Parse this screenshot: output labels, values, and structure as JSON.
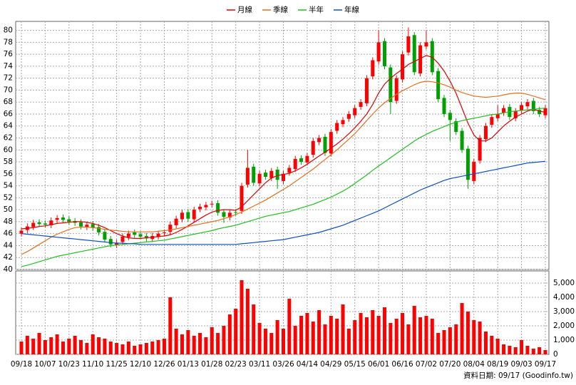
{
  "chart_data": {
    "type": "candlestick",
    "categories": [
      "09/18",
      null,
      null,
      null,
      "10/07",
      null,
      null,
      null,
      "10/23",
      null,
      null,
      null,
      "11/10",
      null,
      null,
      null,
      "11/25",
      null,
      null,
      null,
      "12/10",
      null,
      null,
      null,
      "12/26",
      null,
      null,
      null,
      "01/13",
      null,
      null,
      null,
      "01/28",
      null,
      null,
      null,
      "02/23",
      null,
      null,
      null,
      "03/11",
      null,
      null,
      null,
      "03/26",
      null,
      null,
      null,
      "04/14",
      null,
      null,
      null,
      "04/29",
      null,
      null,
      null,
      "05/15",
      null,
      null,
      null,
      "06/01",
      null,
      null,
      null,
      "06/16",
      null,
      null,
      null,
      "07/02",
      null,
      null,
      null,
      "07/20",
      null,
      null,
      null,
      "08/04",
      null,
      null,
      null,
      "08/19",
      null,
      null,
      null,
      "09/03",
      null,
      null,
      null,
      "09/17"
    ],
    "open": [
      46.0,
      46.6,
      47.1,
      47.9,
      47.7,
      47.4,
      48.3,
      48.7,
      48.4,
      48.1,
      47.9,
      47.1,
      47.6,
      47.1,
      46.3,
      45.1,
      44.1,
      44.6,
      45.4,
      46.2,
      45.9,
      45.6,
      45.1,
      45.5,
      46.1,
      46.3,
      47.4,
      48.4,
      49.6,
      48.4,
      50.1,
      50.4,
      50.9,
      51.1,
      49.6,
      48.7,
      49.6,
      49.8,
      54.2,
      57.2,
      54.4,
      56.2,
      55.3,
      56.7,
      54.8,
      56.2,
      56.8,
      58.6,
      57.9,
      59.2,
      61.3,
      62.2,
      59.4,
      63.2,
      64.3,
      65.2,
      65.8,
      67.2,
      67.8,
      72.3,
      74.8,
      78.2,
      73.8,
      68.2,
      71.8,
      76.3,
      79.2,
      72.8,
      77.3,
      78.2,
      73.2,
      68.7,
      66.2,
      64.8,
      63.2,
      60.2,
      54.8,
      58.2,
      61.8,
      64.2,
      65.3,
      66.2,
      67.2,
      65.3,
      66.6,
      67.3,
      68.2,
      66.7,
      65.8
    ],
    "high": [
      47.0,
      47.7,
      48.3,
      48.4,
      48.2,
      48.7,
      49.1,
      49.2,
      48.9,
      48.6,
      48.4,
      48.0,
      48.1,
      47.6,
      46.8,
      45.6,
      45.0,
      46.0,
      46.5,
      46.7,
      46.4,
      46.1,
      46.1,
      46.5,
      46.7,
      48.0,
      49.0,
      50.0,
      50.1,
      50.5,
      51.0,
      51.3,
      51.5,
      51.6,
      50.1,
      50.0,
      50.1,
      54.5,
      60.0,
      57.7,
      56.5,
      56.7,
      57.0,
      57.2,
      56.5,
      57.5,
      59.0,
      59.1,
      59.5,
      62.0,
      62.5,
      62.7,
      63.5,
      65.0,
      65.5,
      66.5,
      67.5,
      68.5,
      72.5,
      75.5,
      80.0,
      78.7,
      74.3,
      72.5,
      76.5,
      80.5,
      79.7,
      78.0,
      80.0,
      78.7,
      73.7,
      69.2,
      66.7,
      65.3,
      63.7,
      60.7,
      58.5,
      62.5,
      64.5,
      66.0,
      67.5,
      67.5,
      67.7,
      67.0,
      68.0,
      68.5,
      68.7,
      67.2,
      67.5
    ],
    "low": [
      45.5,
      46.1,
      46.6,
      47.1,
      47.0,
      46.9,
      47.8,
      47.8,
      47.5,
      47.3,
      46.7,
      46.6,
      46.5,
      45.7,
      44.5,
      43.7,
      43.6,
      44.1,
      44.9,
      45.3,
      45.0,
      44.7,
      44.6,
      45.0,
      45.6,
      45.8,
      46.9,
      47.9,
      48.0,
      47.9,
      49.6,
      49.9,
      50.4,
      49.0,
      47.8,
      48.2,
      49.0,
      49.3,
      53.7,
      54.0,
      53.9,
      55.0,
      54.8,
      53.5,
      54.3,
      55.7,
      56.3,
      57.5,
      57.4,
      58.7,
      60.8,
      59.0,
      58.9,
      62.7,
      63.8,
      64.7,
      65.3,
      66.7,
      67.3,
      71.8,
      74.3,
      73.5,
      66.0,
      67.7,
      71.3,
      75.8,
      72.5,
      72.3,
      76.8,
      72.5,
      68.0,
      65.5,
      61.5,
      62.5,
      59.5,
      53.5,
      54.3,
      57.7,
      61.3,
      63.7,
      64.8,
      65.7,
      65.0,
      64.8,
      66.1,
      66.8,
      66.0,
      65.5,
      65.3
    ],
    "close": [
      46.5,
      47.2,
      47.8,
      47.6,
      47.5,
      48.2,
      48.6,
      48.3,
      48.0,
      47.8,
      47.2,
      47.5,
      47.0,
      46.2,
      45.0,
      44.2,
      44.5,
      45.5,
      46.0,
      45.8,
      45.5,
      45.2,
      45.6,
      46.0,
      46.2,
      47.5,
      48.5,
      49.5,
      48.5,
      50.0,
      50.5,
      50.8,
      51.0,
      49.5,
      48.8,
      49.5,
      49.5,
      54.0,
      57.0,
      54.5,
      56.0,
      55.5,
      56.5,
      55.0,
      56.0,
      57.0,
      58.5,
      58.0,
      59.0,
      61.5,
      62.0,
      59.5,
      63.0,
      64.5,
      65.0,
      66.0,
      67.0,
      68.0,
      72.0,
      75.0,
      78.0,
      74.0,
      68.0,
      72.0,
      76.0,
      79.0,
      73.0,
      77.5,
      78.0,
      73.0,
      68.5,
      66.0,
      65.0,
      63.0,
      60.0,
      55.0,
      58.0,
      62.0,
      64.0,
      65.5,
      66.0,
      67.0,
      65.5,
      66.5,
      67.5,
      68.0,
      66.5,
      66.0,
      67.0
    ],
    "up_color": "#ff0000",
    "down_color": "#00a000",
    "ylim": [
      40,
      81.5
    ],
    "yticks": [
      40,
      42,
      44,
      46,
      48,
      50,
      52,
      54,
      56,
      58,
      60,
      62,
      64,
      66,
      68,
      70,
      72,
      74,
      76,
      78,
      80
    ],
    "grid": true,
    "legend": "top",
    "series": [
      {
        "name": "月線",
        "color": "#e00000",
        "values": [
          46.8,
          46.9,
          47.0,
          47.2,
          47.3,
          47.5,
          47.7,
          47.8,
          47.9,
          48.0,
          48.0,
          47.9,
          47.7,
          47.4,
          47.0,
          46.5,
          46.0,
          45.6,
          45.3,
          45.2,
          45.2,
          45.3,
          45.4,
          45.5,
          45.6,
          45.8,
          46.2,
          46.7,
          47.3,
          47.9,
          48.5,
          49.1,
          49.6,
          49.9,
          50.0,
          50.0,
          49.9,
          50.5,
          51.5,
          52.5,
          53.5,
          54.5,
          55.3,
          55.7,
          55.9,
          56.1,
          56.5,
          57.0,
          57.6,
          58.3,
          59.0,
          59.6,
          60.3,
          61.0,
          61.8,
          62.7,
          63.7,
          64.8,
          66.0,
          67.6,
          69.5,
          71.0,
          72.0,
          72.8,
          73.5,
          74.3,
          74.8,
          75.3,
          75.8,
          75.5,
          74.5,
          73.2,
          71.5,
          69.5,
          67.0,
          64.5,
          62.5,
          61.5,
          61.5,
          62.0,
          63.0,
          64.0,
          64.8,
          65.5,
          66.0,
          66.5,
          66.8,
          66.5,
          66.3
        ]
      },
      {
        "name": "季線",
        "color": "#e07020",
        "values": [
          42.5,
          43.0,
          43.6,
          44.2,
          44.8,
          45.4,
          45.9,
          46.3,
          46.7,
          47.0,
          47.1,
          47.1,
          47.0,
          46.9,
          46.7,
          46.6,
          46.5,
          46.4,
          46.3,
          46.3,
          46.3,
          46.3,
          46.3,
          46.4,
          46.5,
          46.6,
          46.8,
          47.0,
          47.2,
          47.4,
          47.6,
          47.8,
          48.0,
          48.2,
          48.5,
          48.8,
          49.2,
          49.6,
          50.1,
          50.6,
          51.1,
          51.6,
          52.2,
          52.8,
          53.4,
          54.0,
          54.7,
          55.4,
          56.1,
          56.8,
          57.6,
          58.4,
          59.2,
          60.0,
          60.9,
          61.8,
          62.7,
          63.8,
          64.9,
          66.0,
          67.0,
          67.9,
          68.6,
          69.3,
          69.9,
          70.4,
          70.9,
          71.3,
          71.5,
          71.4,
          71.2,
          70.9,
          70.5,
          70.0,
          69.6,
          69.3,
          69.0,
          68.9,
          68.8,
          68.9,
          69.0,
          69.2,
          69.4,
          69.5,
          69.5,
          69.3,
          69.0,
          68.7,
          68.4
        ]
      },
      {
        "name": "半年",
        "color": "#20c020",
        "values": [
          40.5,
          40.7,
          41.0,
          41.3,
          41.6,
          41.9,
          42.2,
          42.4,
          42.6,
          42.8,
          43.0,
          43.2,
          43.4,
          43.6,
          43.8,
          44.0,
          44.1,
          44.2,
          44.3,
          44.4,
          44.5,
          44.6,
          44.7,
          44.8,
          44.9,
          45.1,
          45.3,
          45.5,
          45.7,
          45.9,
          46.1,
          46.3,
          46.5,
          46.8,
          47.0,
          47.2,
          47.4,
          47.7,
          48.0,
          48.3,
          48.6,
          48.9,
          49.1,
          49.3,
          49.5,
          49.7,
          50.0,
          50.3,
          50.6,
          50.9,
          51.3,
          51.7,
          52.1,
          52.6,
          53.1,
          53.7,
          54.4,
          55.1,
          55.8,
          56.6,
          57.3,
          58.0,
          58.7,
          59.4,
          60.1,
          60.8,
          61.5,
          62.1,
          62.6,
          63.1,
          63.5,
          63.9,
          64.3,
          64.6,
          64.9,
          65.1,
          65.3,
          65.5,
          65.7,
          65.9,
          66.0,
          66.2,
          66.4,
          66.5,
          66.6,
          66.7,
          66.8,
          66.9,
          67.0
        ]
      },
      {
        "name": "年線",
        "color": "#1050c0",
        "values": [
          46.0,
          45.9,
          45.8,
          45.7,
          45.6,
          45.5,
          45.4,
          45.3,
          45.2,
          45.1,
          45.0,
          44.9,
          44.8,
          44.7,
          44.6,
          44.5,
          44.4,
          44.4,
          44.3,
          44.3,
          44.2,
          44.2,
          44.2,
          44.2,
          44.2,
          44.2,
          44.2,
          44.2,
          44.2,
          44.2,
          44.2,
          44.2,
          44.2,
          44.2,
          44.2,
          44.2,
          44.2,
          44.3,
          44.4,
          44.5,
          44.6,
          44.7,
          44.8,
          44.9,
          45.0,
          45.2,
          45.4,
          45.6,
          45.8,
          46.0,
          46.2,
          46.5,
          46.8,
          47.1,
          47.4,
          47.8,
          48.2,
          48.6,
          49.0,
          49.4,
          49.8,
          50.3,
          50.8,
          51.3,
          51.8,
          52.3,
          52.8,
          53.3,
          53.7,
          54.1,
          54.5,
          54.9,
          55.2,
          55.4,
          55.6,
          55.8,
          56.0,
          56.2,
          56.4,
          56.6,
          56.8,
          57.0,
          57.2,
          57.4,
          57.6,
          57.8,
          57.9,
          58.0,
          58.1
        ]
      }
    ],
    "volume": {
      "type": "bar",
      "color": "#ff0000",
      "ylim": [
        0,
        5850
      ],
      "yticks": [
        0,
        {
          "value": 1000,
          "label": "1,000"
        },
        {
          "value": 2000,
          "label": "2,000"
        },
        {
          "value": 3000,
          "label": "3,000"
        },
        {
          "value": 4000,
          "label": "4,000"
        },
        {
          "value": 5000,
          "label": "5,000"
        }
      ],
      "values": [
        900,
        1300,
        1100,
        1500,
        1000,
        1200,
        1400,
        900,
        1100,
        1300,
        1000,
        800,
        1400,
        1200,
        1100,
        900,
        800,
        700,
        900,
        600,
        700,
        800,
        900,
        1000,
        1100,
        4000,
        1800,
        1400,
        1700,
        1300,
        1500,
        1200,
        1900,
        1500,
        2000,
        2800,
        3200,
        5200,
        4600,
        3500,
        2200,
        1800,
        1500,
        2400,
        1800,
        3900,
        2000,
        2700,
        2900,
        2300,
        3100,
        2100,
        2700,
        2500,
        3500,
        1800,
        2400,
        2900,
        2600,
        3100,
        2700,
        3300,
        2200,
        2500,
        2900,
        2100,
        3400,
        2600,
        2700,
        2500,
        1500,
        1700,
        1900,
        2100,
        3600,
        3000,
        2400,
        2300,
        1600,
        1300,
        1100,
        700,
        600,
        500,
        1000,
        600,
        400,
        500,
        300
      ]
    },
    "note": "資料日期: 09/17 (Goodinfo.tw)"
  }
}
